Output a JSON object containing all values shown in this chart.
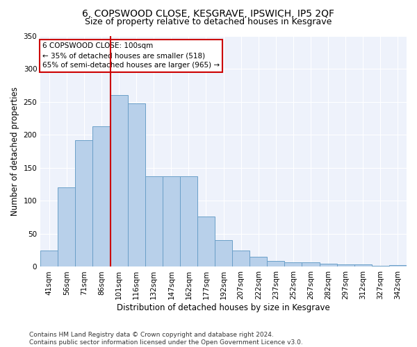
{
  "title": "6, COPSWOOD CLOSE, KESGRAVE, IPSWICH, IP5 2QF",
  "subtitle": "Size of property relative to detached houses in Kesgrave",
  "xlabel": "Distribution of detached houses by size in Kesgrave",
  "ylabel": "Number of detached properties",
  "categories": [
    "41sqm",
    "56sqm",
    "71sqm",
    "86sqm",
    "101sqm",
    "116sqm",
    "132sqm",
    "147sqm",
    "162sqm",
    "177sqm",
    "192sqm",
    "207sqm",
    "222sqm",
    "237sqm",
    "252sqm",
    "267sqm",
    "282sqm",
    "297sqm",
    "312sqm",
    "327sqm",
    "342sqm"
  ],
  "values": [
    25,
    120,
    192,
    213,
    260,
    247,
    137,
    137,
    137,
    76,
    40,
    25,
    15,
    9,
    7,
    7,
    5,
    4,
    4,
    2,
    3
  ],
  "bar_color": "#b8d0ea",
  "bar_edge_color": "#6a9fc8",
  "vline_index": 4,
  "annotation_text_line1": "6 COPSWOOD CLOSE: 100sqm",
  "annotation_text_line2": "← 35% of detached houses are smaller (518)",
  "annotation_text_line3": "65% of semi-detached houses are larger (965) →",
  "vline_color": "#cc0000",
  "box_edge_color": "#cc0000",
  "background_color": "#eef2fb",
  "grid_color": "#ffffff",
  "footer_line1": "Contains HM Land Registry data © Crown copyright and database right 2024.",
  "footer_line2": "Contains public sector information licensed under the Open Government Licence v3.0.",
  "ylim": [
    0,
    350
  ],
  "title_fontsize": 10,
  "subtitle_fontsize": 9,
  "xlabel_fontsize": 8.5,
  "ylabel_fontsize": 8.5,
  "tick_fontsize": 7.5,
  "annot_fontsize": 7.5,
  "footer_fontsize": 6.5
}
